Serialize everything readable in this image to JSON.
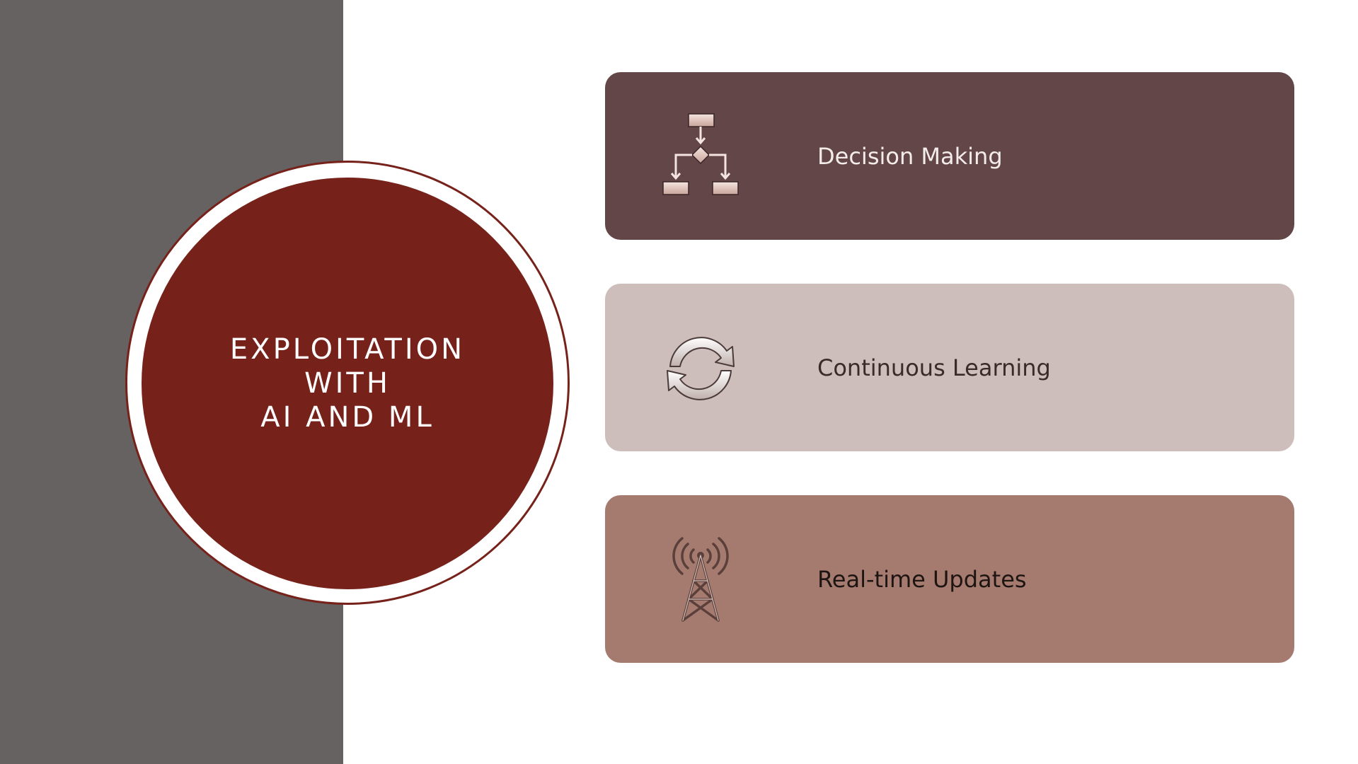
{
  "slide": {
    "title": "Exploitation\nwith\nAI and ML",
    "items": [
      {
        "label": "Decision Making",
        "icon": "flowchart-icon",
        "bg": "#634647",
        "text_color": "#f3eceb"
      },
      {
        "label": "Continuous Learning",
        "icon": "refresh-cycle-icon",
        "bg": "#cdbebb",
        "text_color": "#3b2a28"
      },
      {
        "label": "Real-time Updates",
        "icon": "antenna-tower-icon",
        "bg": "#a57b6f",
        "text_color": "#1e1412"
      }
    ]
  },
  "colors": {
    "left_panel": "#666261",
    "circle": "#76221a",
    "background": "#ffffff"
  }
}
